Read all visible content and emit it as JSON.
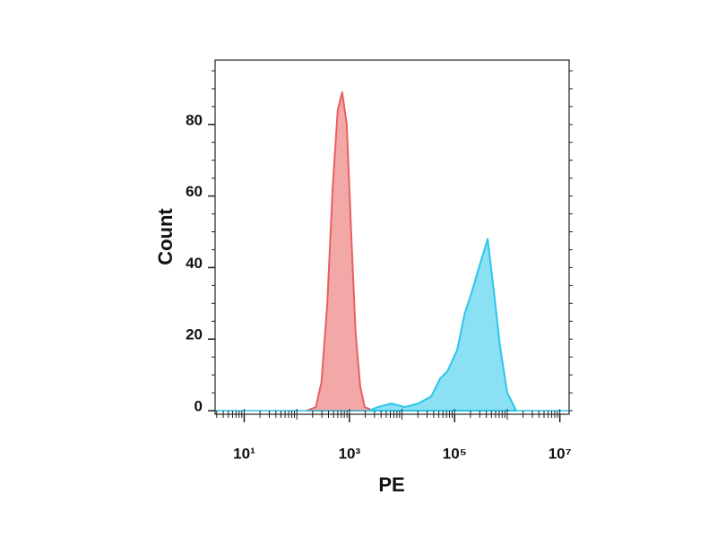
{
  "chart_data": {
    "type": "area",
    "x_label": "PE",
    "y_label": "Count",
    "xscale": "log",
    "xlim": [
      2.8,
      15000000
    ],
    "ylim": [
      -1,
      98
    ],
    "xticks": [
      {
        "value": 10,
        "label": "10¹"
      },
      {
        "value": 1000,
        "label": "10³"
      },
      {
        "value": 100000,
        "label": "10⁵"
      },
      {
        "value": 10000000,
        "label": "10⁷"
      }
    ],
    "yticks": [
      0,
      20,
      40,
      60,
      80
    ],
    "series": [
      {
        "color": "#e8605f",
        "x": [
          155,
          230,
          295,
          380,
          480,
          600,
          730,
          890,
          1080,
          1310,
          1600,
          1940,
          2860
        ],
        "values": [
          0,
          1,
          8,
          30,
          62,
          84,
          89,
          80,
          50,
          22,
          7,
          1,
          0
        ]
      },
      {
        "color": "#2cc6ea",
        "x": [
          2350,
          3480,
          6250,
          11300,
          20200,
          36000,
          53000,
          73000,
          112000,
          155000,
          210000,
          290000,
          425000,
          540000,
          730000,
          1000000,
          1480000
        ],
        "values": [
          0,
          1,
          2,
          1,
          2,
          4,
          9,
          11,
          17,
          27,
          33,
          40,
          48,
          35,
          18,
          5,
          0
        ]
      }
    ]
  }
}
